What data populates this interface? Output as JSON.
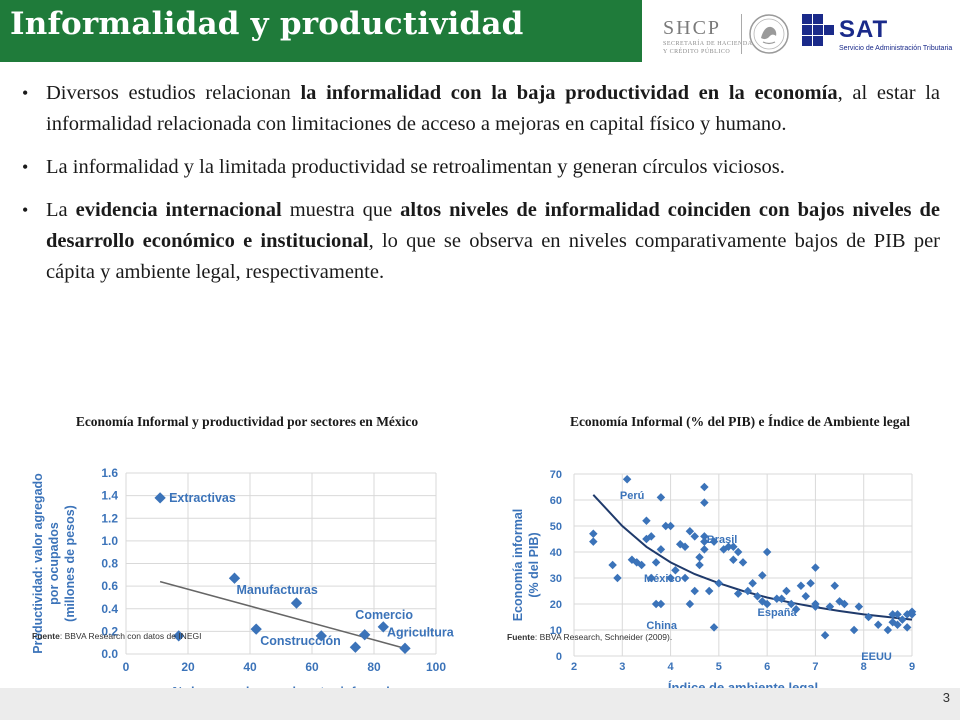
{
  "slide": {
    "title": "Informalidad y productividad",
    "page_number": "3",
    "colors": {
      "title_bar": "#1f7b3a",
      "chart_point": "#3b73b9",
      "trend_line": "#1f3a6b"
    }
  },
  "logos": {
    "shcp": "SHCP",
    "shcp_sub1": "SECRETARÍA DE HACIENDA",
    "shcp_sub2": "Y CRÉDITO PÚBLICO",
    "sat": "SAT",
    "sat_sub": "Servicio de Administración Tributaria"
  },
  "bullets": [
    {
      "parts": [
        {
          "t": "Diversos estudios relacionan ",
          "b": false
        },
        {
          "t": "la informalidad con la baja productividad en la economía",
          "b": true
        },
        {
          "t": ", al estar la informalidad relacionada con limitaciones de acceso a mejoras en capital físico y humano.",
          "b": false
        }
      ]
    },
    {
      "parts": [
        {
          "t": "La informalidad y la limitada productividad se retroalimentan y generan círculos viciosos.",
          "b": false
        }
      ]
    },
    {
      "parts": [
        {
          "t": "La ",
          "b": false
        },
        {
          "t": "evidencia internacional",
          "b": true
        },
        {
          "t": " muestra que ",
          "b": false
        },
        {
          "t": "altos niveles de informalidad coinciden con bajos niveles de desarrollo económico e institucional",
          "b": true
        },
        {
          "t": ", lo que se observa en niveles comparativamente bajos de PIB per cápita y ambiente legal, respectivamente.",
          "b": false
        }
      ]
    }
  ],
  "chart_data": [
    {
      "type": "scatter",
      "title": "Economía Informal y productividad por sectores en México",
      "xlabel": "% de ocupados en el sector informal",
      "ylabel_line1": "Productividad: valor agregado",
      "ylabel_line2": "por ocupados",
      "ylabel_line3": "(millones de pesos)",
      "xlim": [
        0,
        100
      ],
      "ylim": [
        0,
        1.6
      ],
      "xticks": [
        "0",
        "20",
        "40",
        "60",
        "80",
        "100"
      ],
      "yticks": [
        "0.0",
        "0.2",
        "0.4",
        "0.6",
        "0.8",
        "1.0",
        "1.2",
        "1.4",
        "1.6"
      ],
      "grid": true,
      "points": [
        {
          "x": 11,
          "y": 1.38,
          "label": "Extractivas"
        },
        {
          "x": 35,
          "y": 0.67,
          "label": "Manufacturas"
        },
        {
          "x": 55,
          "y": 0.45,
          "label": ""
        },
        {
          "x": 42,
          "y": 0.22,
          "label": "Construcción"
        },
        {
          "x": 17,
          "y": 0.16,
          "label": ""
        },
        {
          "x": 63,
          "y": 0.16,
          "label": ""
        },
        {
          "x": 77,
          "y": 0.17,
          "label": ""
        },
        {
          "x": 83,
          "y": 0.24,
          "label": "Comercio"
        },
        {
          "x": 74,
          "y": 0.06,
          "label": ""
        },
        {
          "x": 90,
          "y": 0.05,
          "label": "Agricultura"
        }
      ],
      "trend": [
        [
          11,
          0.64
        ],
        [
          90,
          0.05
        ]
      ],
      "source_label": "Fuente",
      "source_text": ": BBVA Research con datos de INEGI"
    },
    {
      "type": "scatter",
      "title": "Economía Informal (% del PIB) e Índice de Ambiente legal",
      "xlabel": "Índice de ambiente legal",
      "ylabel_line1": "Economía informal",
      "ylabel_line2": "(% del PIB)",
      "xlim": [
        2,
        9
      ],
      "ylim": [
        0,
        70
      ],
      "xticks": [
        "2",
        "3",
        "4",
        "5",
        "6",
        "7",
        "8",
        "9"
      ],
      "yticks": [
        "0",
        "10",
        "20",
        "30",
        "40",
        "50",
        "60",
        "70"
      ],
      "grid": true,
      "labels": [
        {
          "text": "Perú",
          "x": 2.95,
          "y": 62
        },
        {
          "text": "Brasil",
          "x": 4.75,
          "y": 45
        },
        {
          "text": "México",
          "x": 3.45,
          "y": 30
        },
        {
          "text": "China",
          "x": 3.5,
          "y": 12
        },
        {
          "text": "España",
          "x": 5.8,
          "y": 17
        },
        {
          "text": "EEUU",
          "x": 7.95,
          "y": 0
        }
      ],
      "points": [
        [
          2.4,
          47
        ],
        [
          2.4,
          44
        ],
        [
          2.8,
          35
        ],
        [
          2.9,
          30
        ],
        [
          3.1,
          68
        ],
        [
          3.2,
          37
        ],
        [
          3.3,
          36
        ],
        [
          3.4,
          35
        ],
        [
          3.5,
          52
        ],
        [
          3.5,
          45
        ],
        [
          3.6,
          46
        ],
        [
          3.6,
          30
        ],
        [
          3.7,
          20
        ],
        [
          3.7,
          36
        ],
        [
          3.8,
          61
        ],
        [
          3.8,
          41
        ],
        [
          3.8,
          20
        ],
        [
          3.9,
          50
        ],
        [
          4.0,
          50
        ],
        [
          4.0,
          30
        ],
        [
          4.1,
          33
        ],
        [
          4.2,
          43
        ],
        [
          4.3,
          42
        ],
        [
          4.3,
          30
        ],
        [
          4.4,
          20
        ],
        [
          4.4,
          48
        ],
        [
          4.5,
          46
        ],
        [
          4.5,
          25
        ],
        [
          4.6,
          35
        ],
        [
          4.6,
          38
        ],
        [
          4.7,
          65
        ],
        [
          4.7,
          59
        ],
        [
          4.7,
          41
        ],
        [
          4.7,
          46
        ],
        [
          4.7,
          44
        ],
        [
          4.8,
          25
        ],
        [
          4.9,
          11
        ],
        [
          4.9,
          44
        ],
        [
          5.0,
          28
        ],
        [
          5.1,
          41
        ],
        [
          5.2,
          42
        ],
        [
          5.3,
          37
        ],
        [
          5.3,
          42
        ],
        [
          5.4,
          40
        ],
        [
          5.4,
          24
        ],
        [
          5.5,
          36
        ],
        [
          5.6,
          25
        ],
        [
          5.7,
          28
        ],
        [
          5.8,
          23
        ],
        [
          5.9,
          21
        ],
        [
          5.9,
          31
        ],
        [
          6.0,
          40
        ],
        [
          6.0,
          20
        ],
        [
          6.2,
          22
        ],
        [
          6.3,
          22
        ],
        [
          6.4,
          25
        ],
        [
          6.5,
          20
        ],
        [
          6.6,
          18
        ],
        [
          6.7,
          27
        ],
        [
          6.8,
          23
        ],
        [
          6.9,
          28
        ],
        [
          7.0,
          20
        ],
        [
          7.0,
          34
        ],
        [
          7.0,
          19
        ],
        [
          7.2,
          8
        ],
        [
          7.3,
          19
        ],
        [
          7.4,
          27
        ],
        [
          7.5,
          21
        ],
        [
          7.6,
          20
        ],
        [
          7.8,
          10
        ],
        [
          7.9,
          19
        ],
        [
          8.1,
          15
        ],
        [
          8.3,
          12
        ],
        [
          8.5,
          10
        ],
        [
          8.6,
          16
        ],
        [
          8.6,
          13
        ],
        [
          8.7,
          16
        ],
        [
          8.7,
          12
        ],
        [
          8.8,
          14
        ],
        [
          8.9,
          16
        ],
        [
          8.9,
          11
        ],
        [
          9.0,
          17
        ],
        [
          9.0,
          16
        ]
      ],
      "trend": [
        [
          2.4,
          62
        ],
        [
          3,
          50
        ],
        [
          3.5,
          42
        ],
        [
          4,
          36
        ],
        [
          4.5,
          31.5
        ],
        [
          5,
          28
        ],
        [
          5.5,
          25
        ],
        [
          6,
          22.5
        ],
        [
          6.5,
          20.5
        ],
        [
          7,
          18.8
        ],
        [
          7.5,
          17.3
        ],
        [
          8,
          16
        ],
        [
          8.5,
          15
        ],
        [
          9,
          14
        ]
      ],
      "source_label": "Fuente",
      "source_text": ": BBVA Research, Schneider (2009)."
    }
  ]
}
